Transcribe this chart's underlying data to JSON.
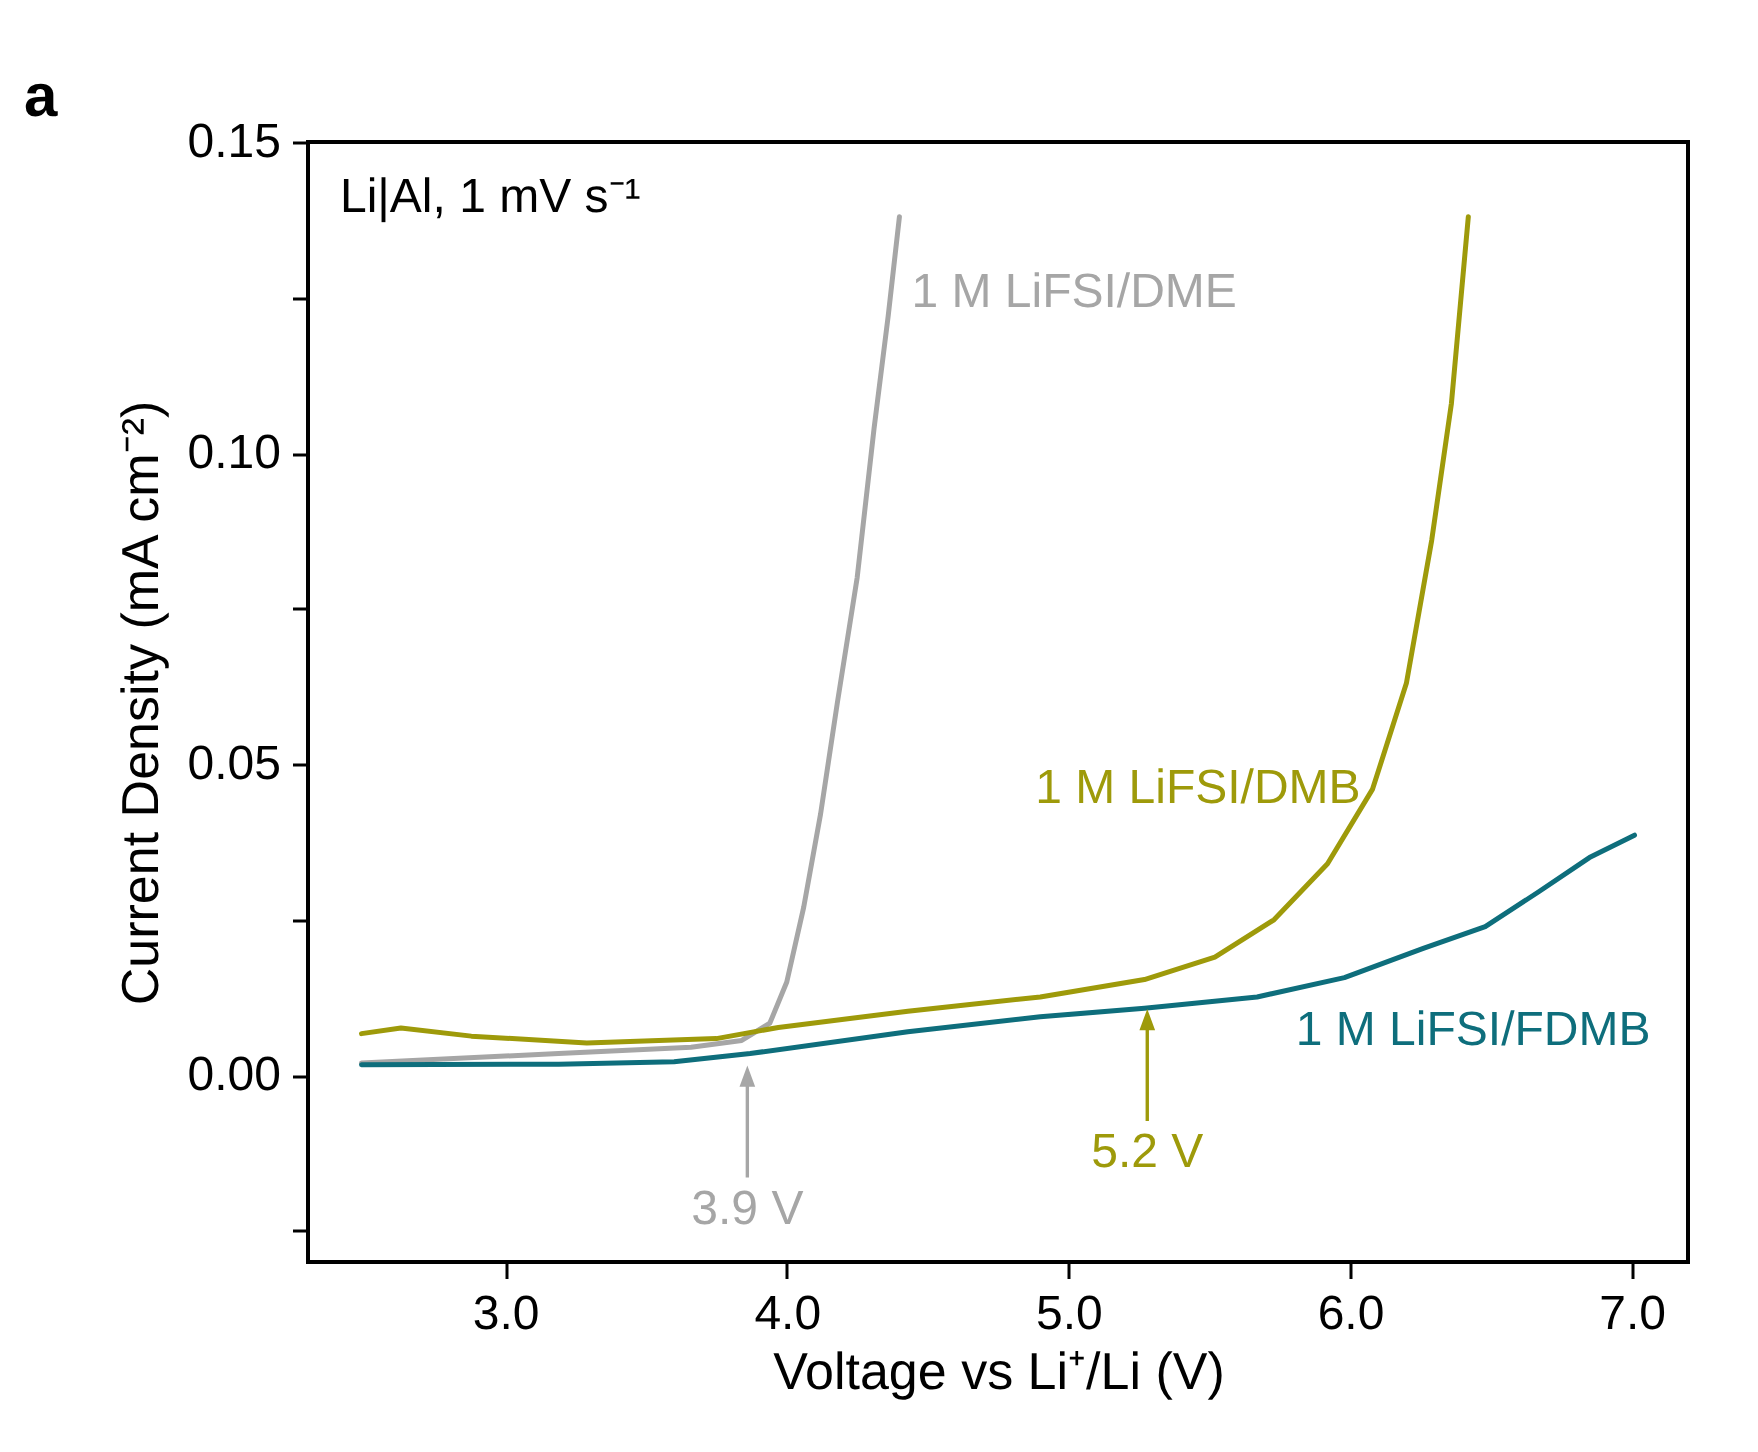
{
  "chart_data": {
    "type": "line",
    "xlabel": "Voltage vs Li⁺/Li (V)",
    "ylabel": "Current Density (mA cm⁻²)",
    "annotations": [
      "a",
      "Li|Al, 1 mV s⁻¹",
      {
        "text": "3.9 V",
        "x": 3.86,
        "y": 0.0035
      },
      {
        "text": "5.2 V",
        "x": 5.28,
        "y": 0.0126
      }
    ],
    "xlim": [
      2.3,
      7.2
    ],
    "xticks": [
      {
        "value": 3,
        "label": "3.0"
      },
      {
        "value": 4,
        "label": "4.0"
      },
      {
        "value": 5,
        "label": "5.0"
      },
      {
        "value": 6,
        "label": "6.0"
      },
      {
        "value": 7,
        "label": "7.0"
      }
    ],
    "ylim": [
      -0.03,
      0.15
    ],
    "yticks": [
      {
        "value": -0.025,
        "label": null
      },
      {
        "value": 0,
        "label": "0.00"
      },
      {
        "value": 0.025,
        "label": null
      },
      {
        "value": 0.05,
        "label": "0.05"
      },
      {
        "value": 0.075,
        "label": null
      },
      {
        "value": 0.1,
        "label": "0.10"
      },
      {
        "value": 0.125,
        "label": null
      },
      {
        "value": 0.15,
        "label": "0.15"
      }
    ],
    "grid": false,
    "legend": false,
    "series": [
      {
        "name": "1 M LiFSI/DME",
        "color": "#a6a6a6",
        "x": [
          2.49,
          3.19,
          3.66,
          3.84,
          3.94,
          4.0,
          4.06,
          4.12,
          4.18,
          4.25,
          4.31,
          4.36,
          4.4
        ],
        "values": [
          0.002,
          0.0035,
          0.0045,
          0.0056,
          0.0084,
          0.015,
          0.027,
          0.042,
          0.06,
          0.08,
          0.104,
          0.122,
          0.138
        ]
      },
      {
        "name": "1 M LiFSI/DMB",
        "color": "#9e9a0a",
        "x": [
          2.49,
          2.63,
          2.88,
          3.29,
          3.75,
          3.97,
          4.43,
          4.9,
          5.27,
          5.52,
          5.73,
          5.92,
          6.08,
          6.2,
          6.29,
          6.36,
          6.42
        ],
        "values": [
          0.0067,
          0.0076,
          0.0063,
          0.0052,
          0.0059,
          0.0077,
          0.0103,
          0.0126,
          0.0154,
          0.019,
          0.025,
          0.034,
          0.046,
          0.063,
          0.086,
          0.108,
          0.138
        ]
      },
      {
        "name": "1 M LiFSI/FDMB",
        "color": "#0e6e7c",
        "x": [
          2.49,
          3.19,
          3.6,
          3.87,
          4.43,
          4.9,
          5.27,
          5.67,
          5.98,
          6.26,
          6.48,
          6.67,
          6.85,
          7.01
        ],
        "values": [
          0.0017,
          0.0018,
          0.0022,
          0.0035,
          0.007,
          0.0094,
          0.0108,
          0.0126,
          0.0157,
          0.0204,
          0.0239,
          0.0295,
          0.035,
          0.0386
        ]
      }
    ]
  }
}
